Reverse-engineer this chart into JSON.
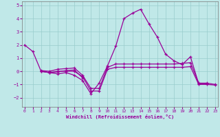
{
  "title": "",
  "xlabel": "Windchill (Refroidissement éolien,°C)",
  "background_color": "#c0e8e8",
  "grid_color": "#98cccc",
  "line_color": "#990099",
  "x": [
    0,
    1,
    2,
    3,
    4,
    5,
    6,
    7,
    8,
    9,
    10,
    11,
    12,
    13,
    14,
    15,
    16,
    17,
    18,
    19,
    20,
    21,
    22,
    23
  ],
  "line1": [
    2.0,
    1.5,
    0.0,
    -0.1,
    -0.2,
    -0.1,
    -0.3,
    -0.7,
    -1.7,
    -0.9,
    0.4,
    1.9,
    4.0,
    4.4,
    4.7,
    3.6,
    2.6,
    1.3,
    0.8,
    0.5,
    1.1,
    -0.95,
    -0.95,
    null
  ],
  "line2": [
    null,
    null,
    0.05,
    0.0,
    0.15,
    0.2,
    0.25,
    -0.3,
    -1.3,
    -1.3,
    0.3,
    0.55,
    0.55,
    0.55,
    0.55,
    0.55,
    0.55,
    0.55,
    0.55,
    0.6,
    0.65,
    -0.9,
    -0.9,
    -1.0
  ],
  "line3": [
    null,
    null,
    0.0,
    -0.1,
    0.0,
    0.0,
    0.0,
    -0.4,
    -1.5,
    -1.5,
    0.15,
    0.3,
    0.3,
    0.3,
    0.3,
    0.3,
    0.3,
    0.3,
    0.3,
    0.3,
    0.35,
    -1.0,
    -1.0,
    -1.05
  ],
  "line4": [
    null,
    null,
    0.0,
    -0.1,
    -0.05,
    0.05,
    0.1,
    -0.5,
    null,
    null,
    null,
    null,
    null,
    null,
    null,
    null,
    null,
    null,
    null,
    null,
    null,
    null,
    null,
    null
  ],
  "ylim": [
    -2.7,
    5.3
  ],
  "xlim": [
    -0.3,
    23.3
  ],
  "yticks": [
    -2,
    -1,
    0,
    1,
    2,
    3,
    4,
    5
  ],
  "xticks": [
    0,
    1,
    2,
    3,
    4,
    5,
    6,
    7,
    8,
    9,
    10,
    11,
    12,
    13,
    14,
    15,
    16,
    17,
    18,
    19,
    20,
    21,
    22,
    23
  ]
}
